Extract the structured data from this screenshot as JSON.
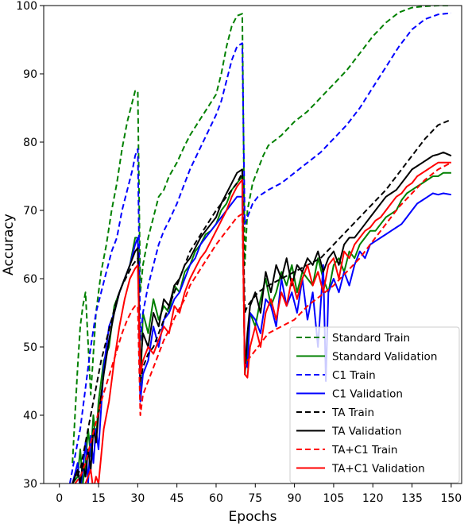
{
  "chart_data": {
    "type": "line",
    "title": "",
    "xlabel": "Epochs",
    "ylabel": "Accuracy",
    "xlim": [
      -6,
      154
    ],
    "ylim": [
      30,
      100
    ],
    "xticks": [
      "0",
      "15",
      "30",
      "45",
      "60",
      "75",
      "90",
      "105",
      "120",
      "135",
      "150"
    ],
    "yticks": [
      "30",
      "40",
      "50",
      "60",
      "70",
      "80",
      "90",
      "100"
    ],
    "grid": false,
    "legend_position": "bottom-right",
    "series": [
      {
        "name": "Standard Train",
        "color": "#008000",
        "dash": "dashed",
        "x": [
          5,
          6,
          7,
          8,
          9,
          10,
          12,
          14,
          16,
          18,
          20,
          22,
          24,
          26,
          28,
          29,
          30,
          31,
          32,
          34,
          36,
          38,
          40,
          42,
          45,
          48,
          50,
          55,
          60,
          62,
          64,
          66,
          68,
          70,
          71,
          72,
          74,
          76,
          78,
          80,
          85,
          90,
          95,
          100,
          105,
          110,
          115,
          120,
          125,
          130,
          135,
          140,
          145,
          150
        ],
        "y": [
          33,
          40,
          47,
          53,
          56,
          58,
          43,
          55,
          61,
          65,
          70,
          74,
          79,
          83,
          86,
          87.5,
          87.5,
          58,
          62,
          66,
          69,
          72,
          73,
          75,
          77,
          79.5,
          81,
          84,
          87,
          90,
          94,
          97,
          98.5,
          98.8,
          62,
          70,
          74,
          76,
          78,
          79.5,
          81,
          83,
          84.5,
          86.5,
          88.5,
          90.5,
          93,
          95.5,
          97.5,
          99,
          99.7,
          99.9,
          100,
          100
        ]
      },
      {
        "name": "Standard Validation",
        "color": "#008000",
        "dash": "solid",
        "x": [
          5,
          7,
          8,
          9,
          10,
          11,
          12,
          13,
          14,
          15,
          17,
          19,
          21,
          23,
          25,
          27,
          29,
          30,
          31,
          32,
          34,
          36,
          38,
          40,
          42,
          44,
          46,
          48,
          50,
          52,
          54,
          56,
          58,
          60,
          62,
          64,
          66,
          68,
          70,
          71,
          72,
          73,
          75,
          77,
          79,
          81,
          83,
          85,
          87,
          89,
          91,
          93,
          95,
          97,
          99,
          101,
          103,
          105,
          107,
          109,
          111,
          113,
          115,
          117,
          119,
          121,
          123,
          125,
          127,
          129,
          131,
          133,
          135,
          137,
          139,
          141,
          143,
          145,
          147,
          150
        ],
        "y": [
          30,
          31,
          35,
          30,
          33,
          38,
          34,
          40,
          36,
          42,
          48,
          50,
          56,
          58,
          60,
          62,
          66,
          66,
          43,
          55,
          52,
          57,
          54,
          56,
          55,
          59,
          58,
          61,
          62,
          64,
          65,
          66.5,
          67,
          68,
          70,
          71,
          73,
          74,
          75,
          46,
          50,
          55,
          53,
          57,
          60,
          56,
          58,
          61,
          59,
          62,
          58,
          61,
          60,
          59,
          63,
          60,
          58,
          62,
          63,
          61,
          64,
          63,
          65,
          66,
          67,
          67,
          68,
          69,
          69.5,
          70,
          71.5,
          72.5,
          73,
          73.5,
          74,
          74.5,
          75,
          75,
          75.5,
          75.5
        ]
      },
      {
        "name": "C1 Train",
        "color": "#0000ff",
        "dash": "dashed",
        "x": [
          4,
          6,
          8,
          10,
          12,
          14,
          16,
          18,
          20,
          22,
          24,
          26,
          28,
          29,
          30,
          31,
          32,
          34,
          36,
          38,
          40,
          42,
          45,
          48,
          50,
          55,
          60,
          62,
          64,
          66,
          68,
          70,
          71,
          72,
          74,
          76,
          78,
          80,
          85,
          90,
          95,
          100,
          105,
          110,
          115,
          120,
          125,
          130,
          135,
          140,
          145,
          150
        ],
        "y": [
          30,
          34,
          38,
          44,
          50,
          55,
          58,
          61,
          64,
          66,
          70,
          73,
          76,
          78,
          79,
          51,
          55,
          59,
          62,
          65,
          67,
          68.5,
          71,
          74,
          76,
          80,
          84,
          86,
          89,
          92,
          94,
          94.5,
          68,
          69,
          71,
          72,
          72.5,
          73,
          74,
          75.5,
          77,
          78.5,
          80.5,
          82.5,
          85,
          88,
          91,
          94,
          96.5,
          98,
          98.7,
          98.9
        ]
      },
      {
        "name": "C1 Validation",
        "color": "#0000ff",
        "dash": "solid",
        "x": [
          5,
          7,
          8,
          9,
          10,
          11,
          12,
          13,
          14,
          15,
          17,
          19,
          21,
          23,
          25,
          27,
          29,
          30,
          31,
          32,
          34,
          36,
          38,
          40,
          42,
          44,
          46,
          48,
          50,
          52,
          54,
          56,
          58,
          60,
          62,
          64,
          66,
          68,
          70,
          71,
          72,
          73,
          75,
          77,
          79,
          81,
          83,
          85,
          87,
          89,
          91,
          93,
          95,
          97,
          99,
          101,
          102,
          103,
          105,
          107,
          109,
          111,
          113,
          115,
          117,
          119,
          121,
          123,
          125,
          127,
          129,
          131,
          133,
          135,
          137,
          139,
          141,
          143,
          145,
          147,
          150
        ],
        "y": [
          30,
          33,
          29,
          32,
          36,
          30,
          37,
          33,
          38,
          35,
          47,
          53,
          55,
          58,
          60,
          62,
          65,
          66,
          42,
          46,
          48,
          53,
          50,
          54,
          55,
          57,
          58,
          60,
          62,
          63,
          65,
          66,
          67,
          68,
          69,
          70,
          71,
          72,
          72,
          48,
          47,
          55,
          54,
          52,
          57,
          56,
          53,
          60,
          56,
          58,
          55,
          60,
          54,
          58,
          50,
          62,
          45,
          58,
          60,
          58,
          61,
          59,
          62,
          64,
          63,
          65,
          65.5,
          66,
          66.5,
          67,
          67.5,
          68,
          69,
          70,
          71,
          71.5,
          72,
          72.5,
          72.3,
          72.5,
          72.3
        ]
      },
      {
        "name": "TA Train",
        "color": "#000000",
        "dash": "dashed",
        "x": [
          5,
          8,
          10,
          12,
          14,
          16,
          18,
          20,
          22,
          24,
          26,
          28,
          30,
          31,
          32,
          34,
          36,
          38,
          40,
          42,
          45,
          48,
          50,
          55,
          60,
          65,
          68,
          70,
          71,
          72,
          74,
          76,
          78,
          80,
          85,
          90,
          95,
          100,
          105,
          110,
          115,
          120,
          125,
          130,
          135,
          140,
          145,
          150
        ],
        "y": [
          30,
          32,
          36,
          40,
          44,
          48,
          51,
          54,
          57,
          59,
          60.5,
          62,
          63,
          45,
          47,
          49,
          50,
          52,
          54,
          56,
          59,
          62,
          64,
          67,
          70,
          72.5,
          74,
          75.5,
          55,
          56,
          57,
          58,
          58.5,
          59,
          60,
          61,
          62,
          63,
          65,
          67,
          69,
          71,
          73,
          75.5,
          78,
          80.5,
          82.5,
          83.3
        ]
      },
      {
        "name": "TA Validation",
        "color": "#000000",
        "dash": "solid",
        "x": [
          5,
          7,
          8,
          9,
          10,
          11,
          12,
          13,
          14,
          15,
          17,
          19,
          21,
          23,
          25,
          27,
          29,
          30,
          31,
          32,
          34,
          36,
          38,
          40,
          42,
          44,
          46,
          48,
          50,
          52,
          54,
          56,
          58,
          60,
          62,
          64,
          66,
          68,
          70,
          71,
          72,
          73,
          75,
          77,
          79,
          81,
          83,
          85,
          87,
          89,
          91,
          93,
          95,
          97,
          99,
          101,
          103,
          105,
          107,
          109,
          111,
          113,
          115,
          117,
          119,
          121,
          123,
          125,
          127,
          129,
          131,
          133,
          135,
          137,
          139,
          141,
          143,
          145,
          147,
          150
        ],
        "y": [
          30,
          32,
          30,
          33,
          31,
          35,
          32,
          38,
          36,
          40,
          46,
          51,
          55,
          58,
          60,
          62,
          64,
          64.5,
          47,
          52,
          50,
          55,
          53,
          57,
          56,
          59,
          60,
          62,
          63,
          64.5,
          66,
          67,
          68,
          69,
          71,
          72.5,
          74,
          75.5,
          76,
          46,
          52,
          56,
          58,
          55,
          61,
          58,
          62,
          60,
          63,
          59,
          62,
          61,
          63,
          62,
          64,
          61,
          63,
          64,
          62,
          65,
          66,
          66,
          67,
          68,
          69,
          70,
          71,
          72,
          72.5,
          73,
          74,
          75,
          76,
          76.5,
          77,
          77.5,
          78,
          78.2,
          78.5,
          78
        ]
      },
      {
        "name": "TA+C1 Train",
        "color": "#ff0000",
        "dash": "dashed",
        "x": [
          6,
          8,
          10,
          12,
          14,
          16,
          18,
          20,
          22,
          24,
          26,
          28,
          29,
          30,
          31,
          32,
          34,
          36,
          38,
          40,
          42,
          45,
          48,
          50,
          55,
          60,
          65,
          68,
          70,
          71,
          72,
          74,
          76,
          78,
          80,
          85,
          90,
          95,
          100,
          105,
          110,
          115,
          120,
          125,
          130,
          135,
          140,
          145,
          150
        ],
        "y": [
          30,
          31,
          33,
          36,
          39,
          42,
          44.5,
          47,
          49.5,
          52,
          54,
          55.5,
          56,
          56,
          40,
          43,
          45,
          47,
          49,
          51,
          52.5,
          55,
          57,
          59,
          62,
          65,
          67.5,
          69,
          69.5,
          47,
          48,
          49,
          50,
          51,
          52,
          53,
          54,
          56,
          57.5,
          59,
          61,
          63,
          65.5,
          68,
          70.5,
          72.5,
          74.5,
          76,
          77
        ]
      },
      {
        "name": "TA+C1 Validation",
        "color": "#ff0000",
        "dash": "solid",
        "x": [
          10,
          12,
          13,
          14,
          15,
          16,
          17,
          19,
          21,
          23,
          25,
          27,
          29,
          30,
          31,
          32,
          34,
          36,
          38,
          40,
          42,
          44,
          46,
          48,
          50,
          52,
          54,
          56,
          58,
          60,
          62,
          64,
          66,
          68,
          70,
          71,
          72,
          73,
          75,
          77,
          79,
          81,
          83,
          85,
          87,
          89,
          91,
          93,
          95,
          97,
          99,
          101,
          103,
          105,
          107,
          109,
          111,
          113,
          115,
          117,
          119,
          121,
          123,
          125,
          127,
          129,
          131,
          133,
          135,
          137,
          139,
          141,
          143,
          145,
          147,
          150
        ],
        "y": [
          30,
          32,
          29,
          31,
          30,
          34,
          38,
          42,
          48,
          53,
          57,
          60,
          61.5,
          62,
          46,
          48,
          50,
          49,
          51,
          53,
          52,
          56,
          55,
          58,
          60,
          61.5,
          63,
          64,
          65.5,
          67,
          68.5,
          70,
          72,
          73.5,
          74.5,
          46,
          45.5,
          50,
          53,
          50,
          55,
          57,
          54,
          58,
          56,
          60,
          57,
          60,
          62,
          59,
          61,
          58,
          62,
          63,
          60,
          64,
          63,
          65,
          66,
          67,
          67.5,
          68.5,
          69,
          70,
          71,
          72,
          72.5,
          73.5,
          74,
          75,
          75.5,
          76,
          76.5,
          77,
          77,
          77
        ]
      }
    ]
  }
}
